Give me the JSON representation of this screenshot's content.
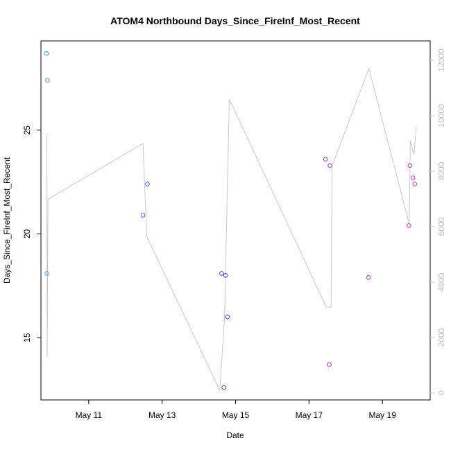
{
  "chart_data": {
    "type": "scatter",
    "title": "ATOM4 Northbound Days_Since_FireInf_Most_Recent",
    "xlabel": "Date",
    "ylabel": "Days_Since_FireInf_Most_Recent",
    "x_ticks": [
      "May 11",
      "May 13",
      "May 15",
      "May 17",
      "May 19"
    ],
    "x_tick_values": [
      11,
      13,
      15,
      17,
      19
    ],
    "xlim": [
      9.7,
      20.3
    ],
    "ylim": [
      12.0,
      29.3
    ],
    "y_ticks": [
      15,
      20,
      25
    ],
    "y2lim": [
      -250,
      12700
    ],
    "y2_ticks": [
      0,
      2000,
      4000,
      6000,
      8000,
      10000,
      12000
    ],
    "grid": false,
    "points": [
      {
        "x": 9.85,
        "y": 28.7,
        "color": "#1ea7f0"
      },
      {
        "x": 9.88,
        "y": 27.4,
        "color": "#1ea7f0"
      },
      {
        "x": 9.86,
        "y": 18.1,
        "color": "#4aa0e8"
      },
      {
        "x": 12.48,
        "y": 20.9,
        "color": "#3b6ef0"
      },
      {
        "x": 12.6,
        "y": 22.4,
        "color": "#3b5ef0"
      },
      {
        "x": 14.62,
        "y": 18.1,
        "color": "#3d45e0"
      },
      {
        "x": 14.68,
        "y": 12.6,
        "color": "#4b3ae0"
      },
      {
        "x": 14.73,
        "y": 18.0,
        "color": "#4a3ae0"
      },
      {
        "x": 14.78,
        "y": 16.0,
        "color": "#3a45e0"
      },
      {
        "x": 17.45,
        "y": 23.6,
        "color": "#9a30e0"
      },
      {
        "x": 17.55,
        "y": 13.7,
        "color": "#a030d8"
      },
      {
        "x": 17.57,
        "y": 23.3,
        "color": "#a530d8"
      },
      {
        "x": 18.62,
        "y": 17.9,
        "color": "#c030d8"
      },
      {
        "x": 19.72,
        "y": 20.4,
        "color": "#d030d0"
      },
      {
        "x": 19.75,
        "y": 23.3,
        "color": "#d830c8"
      },
      {
        "x": 19.83,
        "y": 22.7,
        "color": "#d830c8"
      },
      {
        "x": 19.88,
        "y": 22.4,
        "color": "#d830c8"
      }
    ],
    "line_series": {
      "name": "",
      "color": "#c8c8c8",
      "x": [
        9.86,
        9.87,
        9.89,
        9.9,
        12.48,
        12.58,
        14.57,
        14.7,
        14.83,
        17.47,
        17.6,
        17.63,
        18.63,
        19.73,
        19.76,
        19.86,
        19.92
      ],
      "y": [
        9300,
        1300,
        6900,
        7000,
        9000,
        5650,
        100,
        2700,
        10600,
        3100,
        3100,
        8200,
        11700,
        6100,
        9100,
        8600,
        9600
      ]
    }
  }
}
